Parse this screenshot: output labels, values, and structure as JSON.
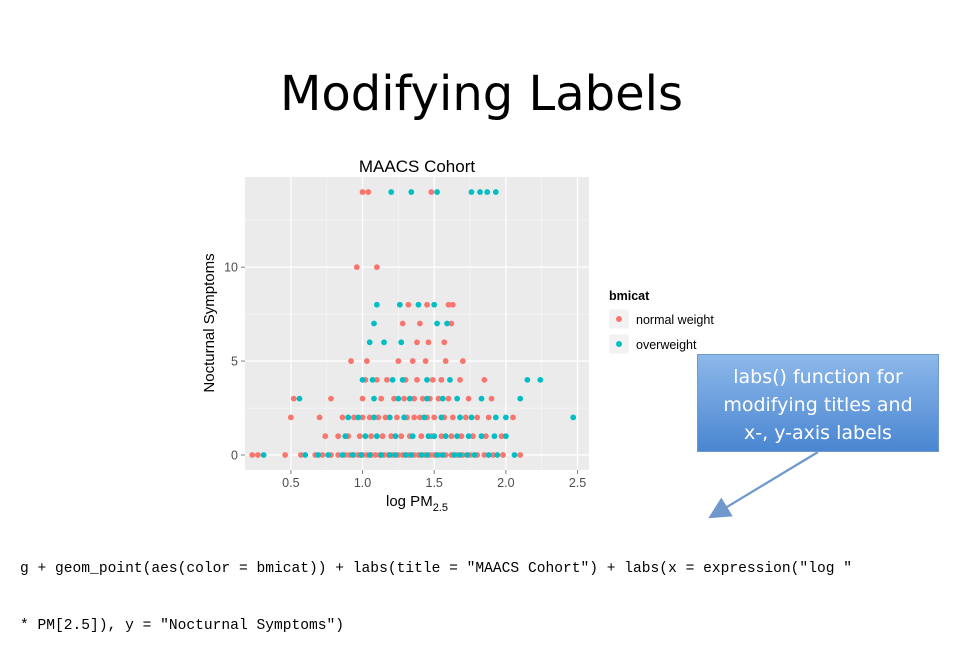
{
  "slide": {
    "title": "Modifying Labels",
    "callout": [
      "labs() function for",
      "modifying titles and",
      "x-, y-axis labels"
    ],
    "code_lines": [
      "g + geom_point(aes(color = bmicat)) + labs(title = \"MAACS Cohort\") + labs(x = expression(\"log \"",
      "* PM[2.5]), y = \"Nocturnal Symptoms\")"
    ]
  },
  "colors": {
    "panel": "#ebebeb",
    "grid": "#ffffff",
    "normal": "#f8766d",
    "over": "#00bfc4",
    "callout_fill": "#5b93d8",
    "arrow": "#6f98cc"
  },
  "chart_data": {
    "type": "scatter",
    "title": "MAACS Cohort",
    "xlabel": "log PM",
    "xlabel_subscript": "2.5",
    "ylabel": "Nocturnal Symptoms",
    "xlim": [
      0.18,
      2.58
    ],
    "ylim": [
      -0.8,
      14.8
    ],
    "xticks": [
      0.5,
      1.0,
      1.5,
      2.0,
      2.5
    ],
    "xtick_labels": [
      "0.5",
      "1.0",
      "1.5",
      "2.0",
      "2.5"
    ],
    "yticks": [
      0,
      5,
      10
    ],
    "ytick_labels": [
      "0",
      "5",
      "10"
    ],
    "grid": true,
    "legend": {
      "title": "bmicat",
      "placement": "right"
    },
    "series": [
      {
        "name": "normal weight",
        "color": "#f8766d",
        "points": [
          [
            1.0,
            14
          ],
          [
            1.04,
            14
          ],
          [
            1.48,
            14
          ],
          [
            0.96,
            10
          ],
          [
            1.1,
            10
          ],
          [
            1.32,
            8
          ],
          [
            1.45,
            8
          ],
          [
            1.6,
            8
          ],
          [
            1.63,
            8
          ],
          [
            1.28,
            7
          ],
          [
            1.4,
            7
          ],
          [
            1.62,
            7
          ],
          [
            1.38,
            6
          ],
          [
            1.46,
            6
          ],
          [
            1.57,
            6
          ],
          [
            0.92,
            5
          ],
          [
            1.03,
            5
          ],
          [
            1.25,
            5
          ],
          [
            1.35,
            5
          ],
          [
            1.44,
            5
          ],
          [
            1.58,
            5
          ],
          [
            1.7,
            5
          ],
          [
            1.02,
            4
          ],
          [
            1.1,
            4
          ],
          [
            1.17,
            4
          ],
          [
            1.3,
            4
          ],
          [
            1.38,
            4
          ],
          [
            1.49,
            4
          ],
          [
            1.55,
            4
          ],
          [
            1.68,
            4
          ],
          [
            1.85,
            4
          ],
          [
            0.52,
            3
          ],
          [
            0.78,
            3
          ],
          [
            1.0,
            3
          ],
          [
            1.13,
            3
          ],
          [
            1.22,
            3
          ],
          [
            1.29,
            3
          ],
          [
            1.36,
            3
          ],
          [
            1.42,
            3
          ],
          [
            1.47,
            3
          ],
          [
            1.53,
            3
          ],
          [
            1.6,
            3
          ],
          [
            1.74,
            3
          ],
          [
            1.9,
            3
          ],
          [
            0.5,
            2
          ],
          [
            0.7,
            2
          ],
          [
            0.86,
            2
          ],
          [
            0.94,
            2
          ],
          [
            1.0,
            2
          ],
          [
            1.05,
            2
          ],
          [
            1.11,
            2
          ],
          [
            1.16,
            2
          ],
          [
            1.24,
            2
          ],
          [
            1.31,
            2
          ],
          [
            1.36,
            2
          ],
          [
            1.4,
            2
          ],
          [
            1.45,
            2
          ],
          [
            1.5,
            2
          ],
          [
            1.57,
            2
          ],
          [
            1.63,
            2
          ],
          [
            1.72,
            2
          ],
          [
            1.8,
            2
          ],
          [
            1.88,
            2
          ],
          [
            2.05,
            2
          ],
          [
            0.74,
            1
          ],
          [
            0.83,
            1
          ],
          [
            0.9,
            1
          ],
          [
            0.98,
            1
          ],
          [
            1.06,
            1
          ],
          [
            1.14,
            1
          ],
          [
            1.2,
            1
          ],
          [
            1.27,
            1
          ],
          [
            1.33,
            1
          ],
          [
            1.41,
            1
          ],
          [
            1.48,
            1
          ],
          [
            1.55,
            1
          ],
          [
            1.62,
            1
          ],
          [
            1.69,
            1
          ],
          [
            1.77,
            1
          ],
          [
            1.86,
            1
          ],
          [
            1.97,
            1
          ],
          [
            0.23,
            0
          ],
          [
            0.27,
            0
          ],
          [
            0.46,
            0
          ],
          [
            0.57,
            0
          ],
          [
            0.67,
            0
          ],
          [
            0.72,
            0
          ],
          [
            0.78,
            0
          ],
          [
            0.83,
            0
          ],
          [
            0.88,
            0
          ],
          [
            0.91,
            0
          ],
          [
            0.94,
            0
          ],
          [
            0.97,
            0
          ],
          [
            1.0,
            0
          ],
          [
            1.03,
            0
          ],
          [
            1.06,
            0
          ],
          [
            1.09,
            0
          ],
          [
            1.12,
            0
          ],
          [
            1.15,
            0
          ],
          [
            1.18,
            0
          ],
          [
            1.21,
            0
          ],
          [
            1.25,
            0
          ],
          [
            1.28,
            0
          ],
          [
            1.32,
            0
          ],
          [
            1.36,
            0
          ],
          [
            1.39,
            0
          ],
          [
            1.43,
            0
          ],
          [
            1.47,
            0
          ],
          [
            1.5,
            0
          ],
          [
            1.54,
            0
          ],
          [
            1.58,
            0
          ],
          [
            1.62,
            0
          ],
          [
            1.66,
            0
          ],
          [
            1.7,
            0
          ],
          [
            1.75,
            0
          ],
          [
            1.8,
            0
          ],
          [
            1.85,
            0
          ],
          [
            1.91,
            0
          ],
          [
            1.98,
            0
          ],
          [
            2.1,
            0
          ]
        ]
      },
      {
        "name": "overweight",
        "color": "#00bfc4",
        "points": [
          [
            1.2,
            14
          ],
          [
            1.34,
            14
          ],
          [
            1.52,
            14
          ],
          [
            1.76,
            14
          ],
          [
            1.82,
            14
          ],
          [
            1.87,
            14
          ],
          [
            1.93,
            14
          ],
          [
            1.1,
            8
          ],
          [
            1.26,
            8
          ],
          [
            1.39,
            8
          ],
          [
            1.5,
            8
          ],
          [
            1.08,
            7
          ],
          [
            1.52,
            7
          ],
          [
            1.59,
            7
          ],
          [
            1.05,
            6
          ],
          [
            1.15,
            6
          ],
          [
            1.27,
            6
          ],
          [
            1.0,
            4
          ],
          [
            1.07,
            4
          ],
          [
            1.21,
            4
          ],
          [
            1.28,
            4
          ],
          [
            1.45,
            4
          ],
          [
            1.61,
            4
          ],
          [
            2.15,
            4
          ],
          [
            2.24,
            4
          ],
          [
            0.56,
            3
          ],
          [
            1.08,
            3
          ],
          [
            1.25,
            3
          ],
          [
            1.33,
            3
          ],
          [
            1.45,
            3
          ],
          [
            1.56,
            3
          ],
          [
            1.66,
            3
          ],
          [
            1.83,
            3
          ],
          [
            2.1,
            3
          ],
          [
            0.9,
            2
          ],
          [
            0.97,
            2
          ],
          [
            1.08,
            2
          ],
          [
            1.19,
            2
          ],
          [
            1.29,
            2
          ],
          [
            1.43,
            2
          ],
          [
            1.55,
            2
          ],
          [
            1.68,
            2
          ],
          [
            1.76,
            2
          ],
          [
            1.93,
            2
          ],
          [
            2.0,
            2
          ],
          [
            2.47,
            2
          ],
          [
            0.88,
            1
          ],
          [
            1.02,
            1
          ],
          [
            1.1,
            1
          ],
          [
            1.23,
            1
          ],
          [
            1.35,
            1
          ],
          [
            1.46,
            1
          ],
          [
            1.5,
            1
          ],
          [
            1.58,
            1
          ],
          [
            1.66,
            1
          ],
          [
            1.74,
            1
          ],
          [
            1.83,
            1
          ],
          [
            1.92,
            1
          ],
          [
            2.0,
            1
          ],
          [
            0.31,
            0
          ],
          [
            0.6,
            0
          ],
          [
            0.69,
            0
          ],
          [
            0.76,
            0
          ],
          [
            0.86,
            0
          ],
          [
            0.93,
            0
          ],
          [
            0.99,
            0
          ],
          [
            1.05,
            0
          ],
          [
            1.13,
            0
          ],
          [
            1.19,
            0
          ],
          [
            1.23,
            0
          ],
          [
            1.3,
            0
          ],
          [
            1.34,
            0
          ],
          [
            1.41,
            0
          ],
          [
            1.45,
            0
          ],
          [
            1.52,
            0
          ],
          [
            1.56,
            0
          ],
          [
            1.64,
            0
          ],
          [
            1.68,
            0
          ],
          [
            1.73,
            0
          ],
          [
            1.78,
            0
          ],
          [
            1.88,
            0
          ],
          [
            1.94,
            0
          ],
          [
            2.06,
            0
          ]
        ]
      }
    ]
  }
}
